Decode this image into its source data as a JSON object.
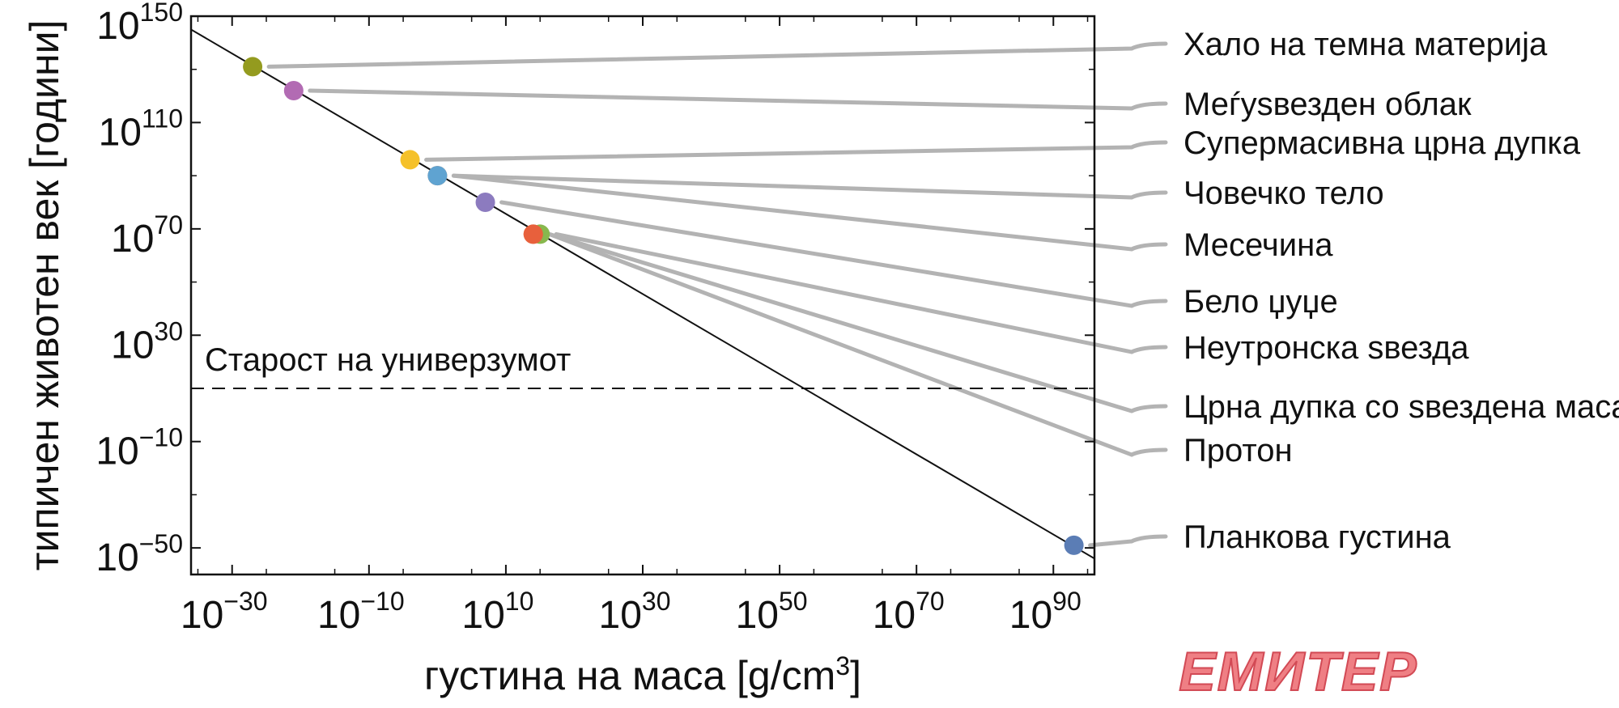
{
  "chart_data": {
    "type": "scatter",
    "xlabel": "густина на маса [g/cm",
    "xlabel_sup": "3",
    "xlabel_end": "]",
    "ylabel": "типичен животен век [години]",
    "x_scale": "log",
    "y_scale": "log",
    "xlim": [
      1e-36,
      1e+96
    ],
    "ylim": [
      1e-60,
      1e+150
    ],
    "x_ticks": [
      {
        "base": "10",
        "exp": "−30",
        "value": 1e-30
      },
      {
        "base": "10",
        "exp": "−10",
        "value": 1e-10
      },
      {
        "base": "10",
        "exp": "10",
        "value": 10000000000.0
      },
      {
        "base": "10",
        "exp": "30",
        "value": 1e+30
      },
      {
        "base": "10",
        "exp": "50",
        "value": 1e+50
      },
      {
        "base": "10",
        "exp": "70",
        "value": 1e+70
      },
      {
        "base": "10",
        "exp": "90",
        "value": 1e+90
      }
    ],
    "y_ticks": [
      {
        "base": "10",
        "exp": "150",
        "value": 1e+150
      },
      {
        "base": "10",
        "exp": "110",
        "value": 1e+110
      },
      {
        "base": "10",
        "exp": "70",
        "value": 1e+70
      },
      {
        "base": "10",
        "exp": "30",
        "value": 1e+30
      },
      {
        "base": "10",
        "exp": "−10",
        "value": 1e-10
      },
      {
        "base": "10",
        "exp": "−50",
        "value": 1e-50
      }
    ],
    "trend_line": {
      "x": [
        1e-36,
        1e+96
      ],
      "y": [
        1e+145,
        1e-54
      ]
    },
    "reference_line": {
      "label": "Старост на универзумот",
      "y": 10000000000.0
    },
    "grid": false,
    "points": [
      {
        "label": "Хало на темна материја",
        "x": 1e-27,
        "y": 1e+131,
        "color": "#949b1f"
      },
      {
        "label": "Меѓуѕвезден облак",
        "x": 1e-21,
        "y": 1e+122,
        "color": "#b26bb3"
      },
      {
        "label": "Супермасивна црна дупка",
        "x": 0.0001,
        "y": 1e+96,
        "color": "#f5c12a"
      },
      {
        "label": "Човечко тело",
        "x": 1.0,
        "y": 1e+90,
        "color": "#e47a3b"
      },
      {
        "label": "Месечина",
        "x": 1.0,
        "y": 1e+90,
        "color": "#5fa3d1"
      },
      {
        "label": "Бело џуџе",
        "x": 10000000.0,
        "y": 1e+80,
        "color": "#8c7bbf"
      },
      {
        "label": "Неутронска ѕвезда",
        "x": 1000000000000000.0,
        "y": 1e+68,
        "color": "#88b84e"
      },
      {
        "label": "Црна дупка со ѕвездена маса",
        "x": 100000000000000.0,
        "y": 1e+68,
        "color": "#e2733c"
      },
      {
        "label": "Протон",
        "x": 100000000000000.0,
        "y": 1e+68,
        "color": "#e8603c"
      },
      {
        "label": "Планкова густина",
        "x": 1e+93,
        "y": 1e-49,
        "color": "#5b7db5"
      }
    ]
  },
  "brand": {
    "logo_text": "ЕМИТЕР"
  }
}
